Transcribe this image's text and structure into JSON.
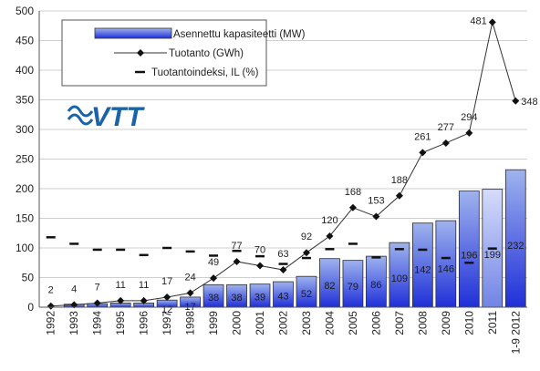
{
  "chart_data": {
    "type": "bar",
    "categories": [
      "1992",
      "1993",
      "1994",
      "1995",
      "1996",
      "1997",
      "1998",
      "1999",
      "2000",
      "2001",
      "2002",
      "2003",
      "2004",
      "2005",
      "2006",
      "2007",
      "2008",
      "2009",
      "2010",
      "2011",
      "1-9 2012"
    ],
    "ylim": [
      0,
      500
    ],
    "yticks": [
      0,
      50,
      100,
      150,
      200,
      250,
      300,
      350,
      400,
      450,
      500
    ],
    "grid": true,
    "legend_position": "top-left",
    "series": [
      {
        "name": "Asennettu kapasiteetti (MW)",
        "kind": "bar",
        "values": [
          0,
          5,
          6,
          7,
          7,
          12,
          17,
          38,
          38,
          39,
          43,
          52,
          82,
          79,
          86,
          109,
          142,
          146,
          196,
          199,
          232
        ],
        "labels": [
          "",
          "",
          "",
          "",
          "",
          "12",
          "17",
          "38",
          "38",
          "39",
          "43",
          "52",
          "82",
          "79",
          "86",
          "109",
          "142",
          "146",
          "196",
          "199",
          "232"
        ]
      },
      {
        "name": "Tuotanto (GWh)",
        "kind": "line",
        "values": [
          2,
          4,
          7,
          11,
          11,
          17,
          24,
          49,
          77,
          70,
          63,
          92,
          120,
          168,
          153,
          188,
          261,
          277,
          294,
          481,
          348
        ],
        "labels": [
          "2",
          "4",
          "7",
          "11",
          "11",
          "17",
          "24",
          "49",
          "77",
          "70",
          "63",
          "92",
          "120",
          "168",
          "153",
          "188",
          "261",
          "277",
          "294",
          "481",
          "348"
        ]
      },
      {
        "name": "Tuotantoindeksi, IL (%)",
        "kind": "marker",
        "values": [
          118,
          107,
          97,
          97,
          88,
          100,
          94,
          87,
          95,
          86,
          73,
          83,
          98,
          107,
          84,
          98,
          97,
          83,
          75,
          99,
          null
        ]
      }
    ],
    "logo": "VTT",
    "colors": {
      "bar_light": "#9fb3ee",
      "bar_dark": "#1f2fd8",
      "bar_highlight_light": "#d6dcfb",
      "bar_highlight_dark": "#7184e6",
      "line": "#333333",
      "logo": "#1b63a8"
    }
  }
}
